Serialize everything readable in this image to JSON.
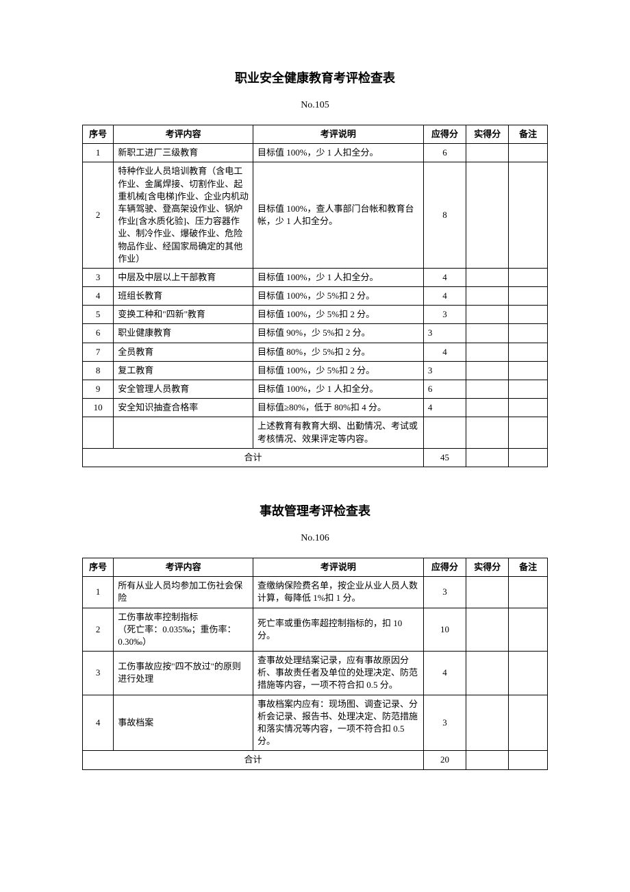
{
  "tables": [
    {
      "title": "职业安全健康教育考评检查表",
      "subtitle": "No.105",
      "headers": [
        "序号",
        "考评内容",
        "考评说明",
        "应得分",
        "实得分",
        "备注"
      ],
      "rows": [
        {
          "seq": "1",
          "content": "新职工进厂三级教育",
          "desc": "目标值 100%，少 1 人扣全分。",
          "score": "6"
        },
        {
          "seq": "2",
          "content": "特种作业人员培训教育（含电工作业、金属焊接、切割作业、起重机械[含电梯]作业、企业内机动车辆驾驶、登高架设作业、锅炉作业[含水质化验]、压力容器作业、制冷作业、爆破作业、危险物品作业、经国家局确定的其他作业）",
          "desc": "目标值 100%，查人事部门台帐和教育台帐，少 1 人扣全分。",
          "score": "8"
        },
        {
          "seq": "3",
          "content": "中层及中层以上干部教育",
          "desc": "目标值 100%，少 1 人扣全分。",
          "score": "4"
        },
        {
          "seq": "4",
          "content": "班组长教育",
          "desc": "目标值 100%，少 5%扣 2 分。",
          "score": "4"
        },
        {
          "seq": "5",
          "content": "变换工种和\"四新\"教育",
          "desc": "目标值 100%，少 5%扣 2 分。",
          "score": "3"
        },
        {
          "seq": "6",
          "content": "职业健康教育",
          "desc": "目标值 90%，少 5%扣 2 分。",
          "score": "3",
          "leftScore": true
        },
        {
          "seq": "7",
          "content": "全员教育",
          "desc": "目标值 80%，少 5%扣 2 分。",
          "score": "4"
        },
        {
          "seq": "8",
          "content": "复工教育",
          "desc": "目标值 100%，少 5%扣 2 分。",
          "score": "3",
          "leftScore": true
        },
        {
          "seq": "9",
          "content": "安全管理人员教育",
          "desc": "目标值 100%，少 1 人扣全分。",
          "score": "6",
          "leftScore": true
        },
        {
          "seq": "10",
          "content": "安全知识抽查合格率",
          "desc": "目标值≥80%，低于 80%扣 4 分。",
          "score": "4",
          "leftScore": true
        },
        {
          "seq": "",
          "content": "",
          "desc": "上述教育有教育大纲、出勤情况、考试或考核情况、效果评定等内容。",
          "score": ""
        }
      ],
      "totalLabel": "合计",
      "totalScore": "45"
    },
    {
      "title": "事故管理考评检查表",
      "subtitle": "No.106",
      "headers": [
        "序号",
        "考评内容",
        "考评说明",
        "应得分",
        "实得分",
        "备注"
      ],
      "rows": [
        {
          "seq": "1",
          "content": "所有从业人员均参加工伤社会保险",
          "desc": "查缴纳保险费名单，按企业从业人员人数计算，每降低 1%扣 1 分。",
          "score": "3"
        },
        {
          "seq": "2",
          "content": "工伤事故率控制指标\n（死亡率：0.035‰；重伤率：0.30‰）",
          "desc": "死亡率或重伤率超控制指标的，扣 10 分。",
          "score": "10"
        },
        {
          "seq": "3",
          "content": "工伤事故应按\"四不放过\"的原则进行处理",
          "desc": "查事故处理结案记录，应有事故原因分析、事故责任者及单位的处理决定、防范措施等内容，一项不符合扣 0.5 分。",
          "score": "4"
        },
        {
          "seq": "4",
          "content": "事故档案",
          "desc": "事故档案内应有：现场图、调查记录、分析会记录、报告书、处理决定、防范措施和落实情况等内容，一项不符合扣 0.5 分。",
          "score": "3"
        }
      ],
      "totalLabel": "合计",
      "totalScore": "20"
    }
  ],
  "style": {
    "background": "#ffffff",
    "borderColor": "#000000",
    "fontFamily": "SimSun",
    "titleFontSize": 18,
    "bodyFontSize": 13
  }
}
